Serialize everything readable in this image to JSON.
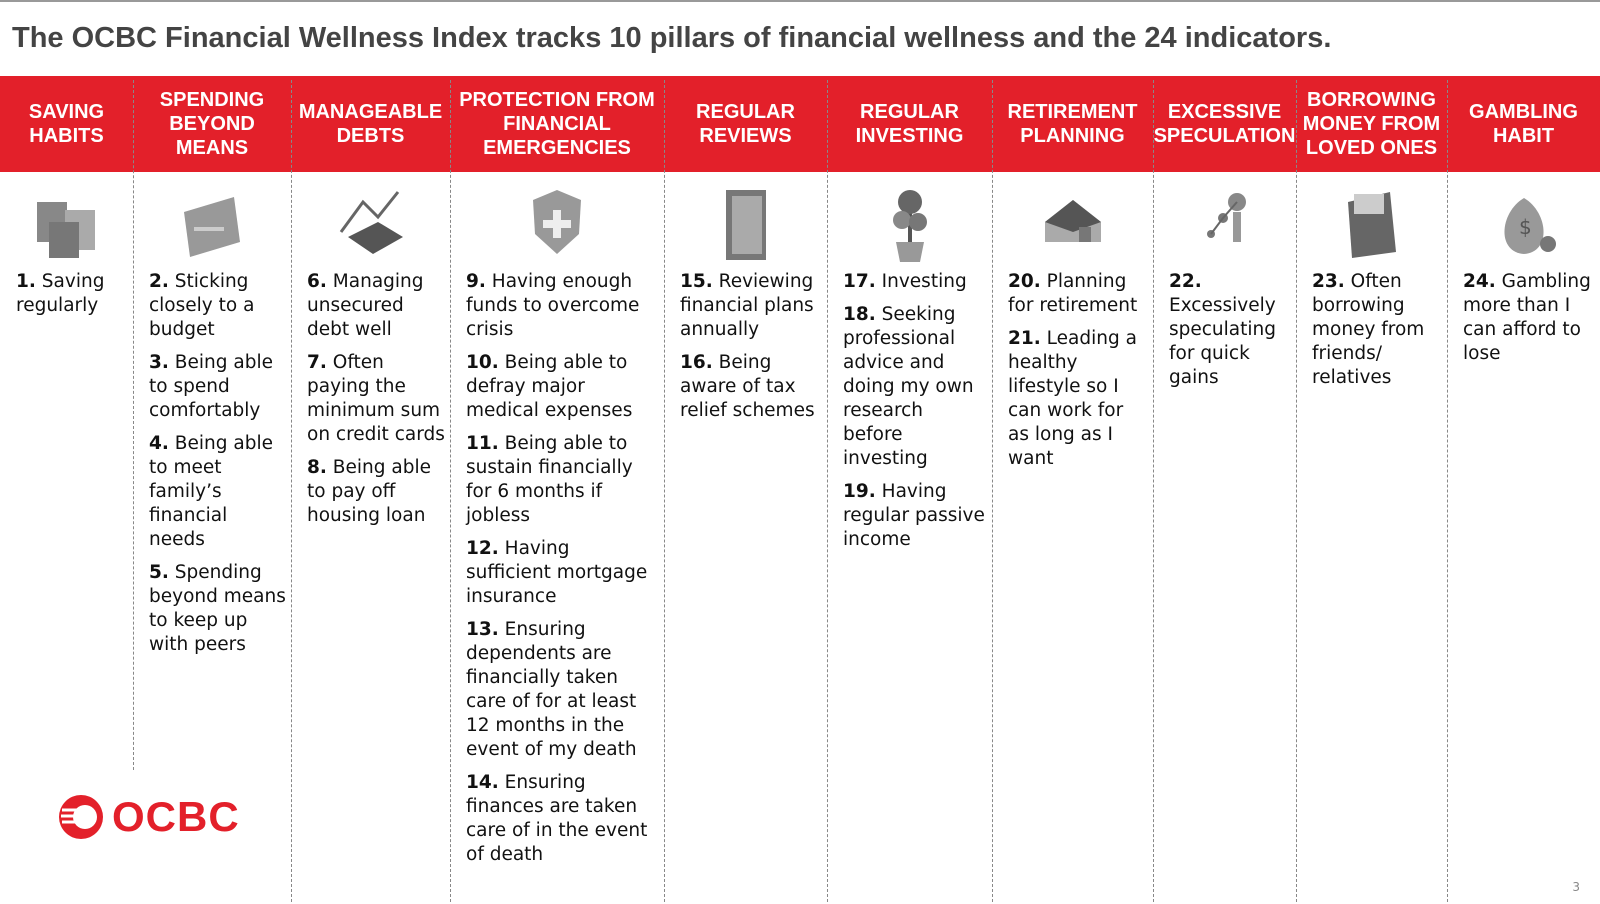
{
  "header": {
    "title": "The OCBC Financial Wellness Index tracks 10 pillars of financial wellness and the 24 indicators."
  },
  "pillars": [
    {
      "name": "SAVING HABITS",
      "indicators": [
        {
          "number": "1.",
          "text": "Saving regularly"
        }
      ]
    },
    {
      "name": "SPENDING BEYOND MEANS",
      "indicators": [
        {
          "number": "2.",
          "text": "Sticking closely to a budget"
        },
        {
          "number": "3.",
          "text": "Being able to spend comfortably"
        },
        {
          "number": "4.",
          "text": "Being able to meet family’s financial needs"
        },
        {
          "number": "5.",
          "text": "Spending beyond means to keep up with peers"
        }
      ]
    },
    {
      "name": "MANAGEABLE DEBTS",
      "indicators": [
        {
          "number": "6.",
          "text": "Managing unsecured debt well"
        },
        {
          "number": "7.",
          "text": "Often paying the minimum sum on credit cards"
        },
        {
          "number": "8.",
          "text": "Being able to pay off housing loan"
        }
      ]
    },
    {
      "name": "PROTECTION FROM FINANCIAL EMERGENCIES",
      "indicators": [
        {
          "number": "9.",
          "text": "Having enough funds to overcome crisis"
        },
        {
          "number": "10.",
          "text": "Being able to defray major medical expenses"
        },
        {
          "number": "11.",
          "text": "Being able to sustain financially for 6 months if jobless"
        },
        {
          "number": "12.",
          "text": "Having sufficient mortgage insurance"
        },
        {
          "number": "13.",
          "text": "Ensuring dependents are financially taken care of for at least 12 months in the event of my death"
        },
        {
          "number": "14.",
          "text": "Ensuring finances are taken care of in the event of death"
        }
      ]
    },
    {
      "name": "REGULAR REVIEWS",
      "indicators": [
        {
          "number": "15.",
          "text": "Reviewing financial plans annually"
        },
        {
          "number": "16.",
          "text": "Being aware of tax relief schemes"
        }
      ]
    },
    {
      "name": "REGULAR INVESTING",
      "indicators": [
        {
          "number": "17.",
          "text": "Investing"
        },
        {
          "number": "18.",
          "text": "Seeking professional advice and doing my own research before investing"
        },
        {
          "number": "19.",
          "text": "Having regular passive income"
        }
      ]
    },
    {
      "name": "RETIREMENT PLANNING",
      "indicators": [
        {
          "number": "20.",
          "text": "Planning for retirement"
        },
        {
          "number": "21.",
          "text": "Leading a healthy lifestyle so I can work for as long as I want"
        }
      ]
    },
    {
      "name": "EXCESSIVE SPECULATION",
      "indicators": [
        {
          "number": "22.",
          "text": "Excessively speculating for quick gains"
        }
      ]
    },
    {
      "name": "BORROWING MONEY FROM LOVED ONES",
      "indicators": [
        {
          "number": "23.",
          "text": "Often borrowing money from friends/ relatives"
        }
      ]
    },
    {
      "name": "GAMBLING HABIT",
      "indicators": [
        {
          "number": "24.",
          "text": "Gambling more than I can afford to lose"
        }
      ]
    }
  ],
  "footer": {
    "logo": "OCBC",
    "page_number": "3"
  }
}
